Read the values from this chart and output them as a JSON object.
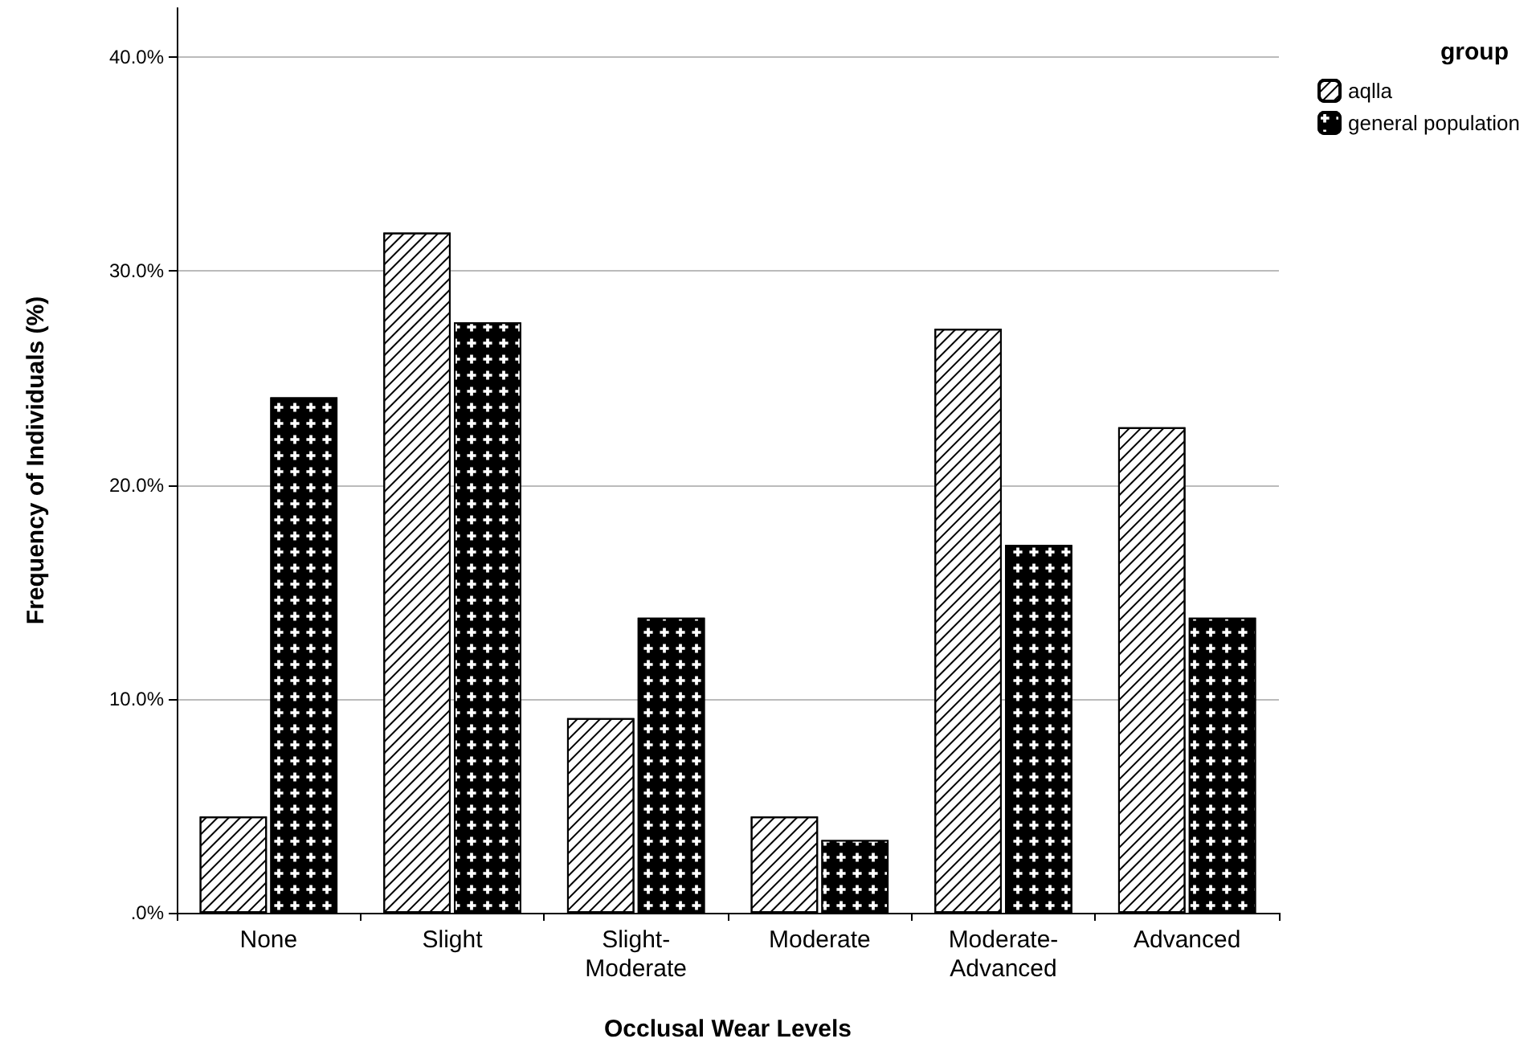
{
  "chart_data": {
    "type": "bar",
    "xlabel": "Occlusal Wear Levels",
    "ylabel": "Frequency of Individuals (%)",
    "legend_title": "group",
    "categories": [
      "None",
      "Slight",
      "Slight-Moderate",
      "Moderate",
      "Moderate-Advanced",
      "Advanced"
    ],
    "series": [
      {
        "name": "aqlla",
        "color": "#ffffff",
        "values": [
          4.5,
          31.8,
          9.1,
          4.5,
          27.3,
          22.7
        ]
      },
      {
        "name": "general population",
        "color": "#000000",
        "values": [
          24.1,
          27.6,
          13.8,
          3.4,
          17.2,
          13.8
        ]
      }
    ],
    "ylim": [
      0,
      42.3
    ],
    "yticks": [
      {
        "value": 0,
        "label": ".0%"
      },
      {
        "value": 10,
        "label": "10.0%"
      },
      {
        "value": 20,
        "label": "20.0%"
      },
      {
        "value": 30,
        "label": "30.0%"
      },
      {
        "value": 40,
        "label": "40.0%"
      }
    ],
    "grid": "y",
    "legend": "top right"
  }
}
